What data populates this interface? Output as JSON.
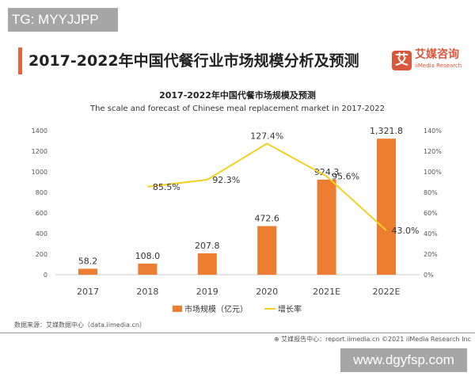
{
  "watermarks": {
    "top": "TG: MYYJJPP",
    "bottom": "www.dgyfsp.com"
  },
  "header": {
    "title": "2017-2022年中国代餐行业市场规模分析及预测",
    "logo_cn": "艾媒咨询",
    "logo_en": "iiMedia Research",
    "logo_mark": "艾"
  },
  "chart_data": {
    "type": "bar+line",
    "title": "2017-2022年中国代餐市场规模及预测",
    "subtitle": "The scale and forecast of Chinese meal replacement market in 2017-2022",
    "categories": [
      "2017",
      "2018",
      "2019",
      "2020",
      "2021E",
      "2022E"
    ],
    "series": [
      {
        "name": "市场规模（亿元）",
        "type": "bar",
        "axis": "left",
        "color": "#ed7d31",
        "values": [
          58.2,
          108.0,
          207.8,
          472.6,
          924.3,
          1321.8
        ],
        "labels": [
          "58.2",
          "108.0",
          "207.8",
          "472.6",
          "924.3",
          "1,321.8"
        ]
      },
      {
        "name": "增长率",
        "type": "line",
        "axis": "right",
        "color": "#f2d024",
        "values": [
          null,
          85.5,
          92.3,
          127.4,
          95.6,
          43.0
        ],
        "labels": [
          "",
          "85.5%",
          "92.3%",
          "127.4%",
          "95.6%",
          "43.0%"
        ]
      }
    ],
    "ylim_left": [
      0,
      1400
    ],
    "yticks_left": [
      "0",
      "200",
      "400",
      "600",
      "800",
      "1000",
      "1200",
      "1400"
    ],
    "ylim_right": [
      0,
      140
    ],
    "yticks_right": [
      "0%",
      "20%",
      "40%",
      "60%",
      "80%",
      "100%",
      "120%",
      "140%"
    ],
    "legend": "bottom",
    "grid": false
  },
  "footer": {
    "source": "数据来源：艾媒数据中心（data.iimedia.cn）",
    "right": "艾媒报告中心：report.iimedia.cn   ©2021  iiMedia Research Inc"
  }
}
